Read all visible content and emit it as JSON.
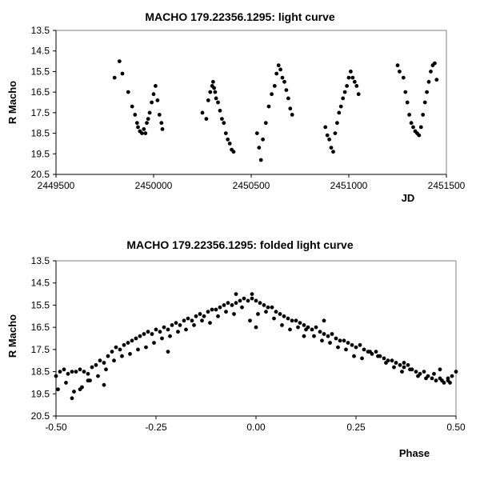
{
  "chart_data": [
    {
      "type": "scatter",
      "title": "MACHO 179.22356.1295: light curve",
      "xlabel": "JD",
      "ylabel": "R Macho",
      "xlim": [
        2449500,
        2451500
      ],
      "ylim": [
        13.5,
        20.5
      ],
      "y_inverted": true,
      "x_ticks": [
        "2449500",
        "2450000",
        "2450500",
        "2451000",
        "2451500"
      ],
      "y_ticks": [
        "13.5",
        "14.5",
        "15.5",
        "16.5",
        "17.5",
        "18.5",
        "19.5",
        "20.5"
      ],
      "grid": false,
      "legend": "none",
      "marker_color": "#000000",
      "series": [
        {
          "x": [
            2449800,
            2449825,
            2449840,
            2449870,
            2449890,
            2449905,
            2449915,
            2449920,
            2449930,
            2449940,
            2449950,
            2449958,
            2449965,
            2449972,
            2449980,
            2449990,
            2450000,
            2450010,
            2450020,
            2450030,
            2450040,
            2450045,
            2450250,
            2450270,
            2450280,
            2450290,
            2450300,
            2450305,
            2450310,
            2450315,
            2450320,
            2450330,
            2450340,
            2450350,
            2450360,
            2450370,
            2450380,
            2450390,
            2450400,
            2450410,
            2450530,
            2450540,
            2450550,
            2450560,
            2450575,
            2450590,
            2450605,
            2450620,
            2450630,
            2450640,
            2450650,
            2450660,
            2450670,
            2450680,
            2450690,
            2450700,
            2450710,
            2450880,
            2450890,
            2450900,
            2450910,
            2450920,
            2450930,
            2450940,
            2450950,
            2450960,
            2450970,
            2450980,
            2450990,
            2451000,
            2451010,
            2451020,
            2451030,
            2451040,
            2451050,
            2451250,
            2451260,
            2451280,
            2451290,
            2451300,
            2451310,
            2451320,
            2451330,
            2451340,
            2451350,
            2451360,
            2451370,
            2451380,
            2451390,
            2451400,
            2451410,
            2451420,
            2451430,
            2451440,
            2451450
          ],
          "y": [
            15.8,
            15.0,
            15.6,
            16.5,
            17.2,
            17.6,
            18.0,
            18.2,
            18.4,
            18.5,
            18.3,
            18.5,
            18.0,
            17.8,
            17.5,
            17.0,
            16.6,
            16.2,
            16.9,
            17.6,
            18.0,
            18.3,
            17.5,
            17.8,
            16.9,
            16.5,
            16.2,
            16.0,
            16.3,
            16.5,
            16.8,
            17.0,
            17.4,
            17.8,
            18.0,
            18.5,
            18.8,
            19.0,
            19.3,
            19.4,
            18.5,
            19.2,
            19.8,
            18.8,
            18.0,
            17.2,
            16.6,
            16.2,
            15.6,
            15.2,
            15.4,
            15.8,
            16.0,
            16.4,
            16.8,
            17.3,
            17.6,
            18.2,
            18.6,
            18.8,
            19.2,
            19.4,
            18.5,
            18.0,
            17.5,
            17.2,
            16.8,
            16.5,
            16.2,
            15.8,
            15.5,
            15.8,
            16.0,
            16.2,
            16.6,
            15.2,
            15.5,
            15.8,
            16.5,
            17.0,
            17.6,
            18.0,
            18.2,
            18.4,
            18.5,
            18.6,
            18.2,
            17.6,
            17.0,
            16.5,
            16.0,
            15.5,
            15.2,
            15.1,
            15.9
          ]
        }
      ]
    },
    {
      "type": "scatter",
      "title": "MACHO 179.22356.1295: folded light curve",
      "xlabel": "Phase",
      "ylabel": "R Macho",
      "xlim": [
        -0.5,
        0.5
      ],
      "ylim": [
        13.5,
        20.5
      ],
      "y_inverted": true,
      "x_ticks": [
        "-0.50",
        "-0.25",
        "0.00",
        "0.25",
        "0.50"
      ],
      "y_ticks": [
        "13.5",
        "14.5",
        "15.5",
        "16.5",
        "17.5",
        "18.5",
        "19.5",
        "20.5"
      ],
      "grid": false,
      "legend": "none",
      "marker_color": "#000000",
      "series": [
        {
          "x": [
            -0.5,
            -0.49,
            -0.48,
            -0.47,
            -0.46,
            -0.45,
            -0.44,
            -0.43,
            -0.42,
            -0.41,
            -0.4,
            -0.39,
            -0.38,
            -0.37,
            -0.36,
            -0.35,
            -0.34,
            -0.33,
            -0.32,
            -0.31,
            -0.3,
            -0.29,
            -0.28,
            -0.27,
            -0.26,
            -0.25,
            -0.24,
            -0.23,
            -0.22,
            -0.21,
            -0.2,
            -0.19,
            -0.18,
            -0.17,
            -0.16,
            -0.15,
            -0.14,
            -0.13,
            -0.12,
            -0.11,
            -0.1,
            -0.09,
            -0.08,
            -0.07,
            -0.06,
            -0.05,
            -0.04,
            -0.03,
            -0.02,
            -0.01,
            0.0,
            0.01,
            0.02,
            0.03,
            0.04,
            0.05,
            0.06,
            0.07,
            0.08,
            0.09,
            0.1,
            0.11,
            0.12,
            0.13,
            0.14,
            0.15,
            0.16,
            0.17,
            0.18,
            0.19,
            0.2,
            0.21,
            0.22,
            0.23,
            0.24,
            0.25,
            0.26,
            0.27,
            0.28,
            0.29,
            0.3,
            0.31,
            0.32,
            0.33,
            0.34,
            0.35,
            0.36,
            0.37,
            0.38,
            0.39,
            0.4,
            0.41,
            0.42,
            0.43,
            0.44,
            0.45,
            0.46,
            0.47,
            0.48,
            0.49,
            0.5,
            -0.495,
            -0.475,
            -0.455,
            -0.435,
            -0.415,
            -0.395,
            -0.375,
            -0.355,
            -0.335,
            -0.315,
            -0.295,
            -0.275,
            -0.255,
            -0.235,
            -0.215,
            -0.195,
            -0.175,
            -0.155,
            -0.135,
            -0.115,
            -0.095,
            -0.075,
            -0.055,
            -0.035,
            -0.015,
            0.005,
            0.025,
            0.045,
            0.065,
            0.085,
            0.105,
            0.125,
            0.145,
            0.165,
            0.185,
            0.205,
            0.225,
            0.245,
            0.265,
            0.285,
            0.305,
            0.325,
            0.345,
            0.365,
            0.385,
            0.405,
            0.425,
            0.445,
            0.465,
            0.485,
            -0.46,
            -0.44,
            -0.42,
            -0.38,
            -0.22,
            -0.05,
            -0.01,
            0.0,
            0.12,
            0.17,
            0.37,
            0.46,
            0.48
          ],
          "y": [
            18.7,
            18.5,
            18.4,
            18.6,
            18.5,
            18.5,
            18.4,
            18.5,
            18.6,
            18.3,
            18.2,
            18.0,
            18.1,
            17.8,
            17.6,
            17.4,
            17.5,
            17.3,
            17.2,
            17.1,
            17.0,
            16.9,
            16.8,
            16.7,
            16.8,
            16.6,
            16.7,
            16.5,
            16.6,
            16.4,
            16.3,
            16.4,
            16.2,
            16.1,
            16.2,
            16.0,
            15.9,
            16.0,
            15.8,
            15.7,
            15.7,
            15.6,
            15.5,
            15.4,
            15.5,
            15.4,
            15.3,
            15.2,
            15.3,
            15.2,
            15.3,
            15.4,
            15.5,
            15.6,
            15.6,
            15.8,
            15.9,
            16.0,
            16.1,
            16.2,
            16.2,
            16.3,
            16.4,
            16.5,
            16.6,
            16.5,
            16.7,
            16.8,
            16.9,
            16.8,
            17.0,
            17.1,
            17.1,
            17.2,
            17.3,
            17.4,
            17.3,
            17.5,
            17.6,
            17.7,
            17.6,
            17.8,
            17.9,
            18.0,
            18.0,
            18.1,
            18.2,
            18.3,
            18.2,
            18.4,
            18.5,
            18.6,
            18.5,
            18.7,
            18.8,
            18.9,
            18.8,
            19.0,
            18.9,
            18.7,
            18.5,
            19.3,
            19.0,
            19.4,
            19.2,
            18.9,
            18.7,
            18.4,
            18.0,
            17.8,
            17.7,
            17.5,
            17.4,
            17.2,
            17.0,
            16.9,
            16.7,
            16.6,
            16.4,
            16.2,
            16.3,
            16.0,
            15.8,
            15.9,
            15.6,
            16.2,
            15.9,
            15.8,
            16.1,
            16.4,
            16.6,
            16.5,
            16.6,
            16.9,
            17.1,
            17.2,
            17.4,
            17.5,
            17.8,
            17.9,
            17.6,
            17.8,
            18.1,
            18.3,
            18.5,
            18.4,
            18.7,
            18.8,
            18.6,
            18.9,
            19.0,
            19.7,
            19.3,
            18.9,
            19.1,
            17.6,
            15.0,
            15.0,
            16.5,
            16.9,
            16.2,
            18.1,
            18.4,
            18.8
          ]
        }
      ]
    }
  ]
}
